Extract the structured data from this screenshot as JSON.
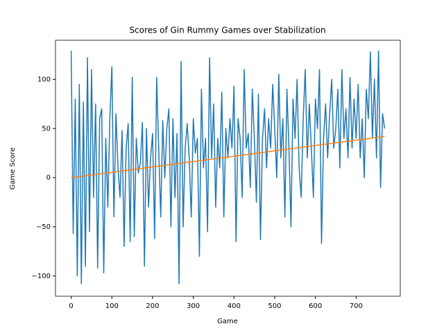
{
  "chart_data": {
    "type": "line",
    "title": "Scores of Gin Rummy Games over Stabilization",
    "x_label": "Game",
    "y_label": "Game Score",
    "xlim": [
      -38.5,
      808.5
    ],
    "ylim": [
      -120.6,
      139.8
    ],
    "xticks": [
      0,
      100,
      200,
      300,
      400,
      500,
      600,
      700
    ],
    "yticks": [
      {
        "value": -100,
        "label": "−100"
      },
      {
        "value": -50,
        "label": "−50"
      },
      0,
      50,
      100
    ],
    "series": [
      {
        "color": "#1f77b4",
        "x": [
          0,
          5,
          10,
          15,
          20,
          25,
          30,
          35,
          40,
          45,
          50,
          55,
          60,
          65,
          70,
          75,
          80,
          85,
          90,
          95,
          100,
          105,
          110,
          115,
          120,
          125,
          130,
          135,
          140,
          145,
          150,
          155,
          160,
          165,
          170,
          175,
          180,
          185,
          190,
          195,
          200,
          205,
          210,
          215,
          220,
          225,
          230,
          235,
          240,
          245,
          250,
          255,
          260,
          265,
          270,
          275,
          280,
          285,
          290,
          295,
          300,
          305,
          310,
          315,
          320,
          325,
          330,
          335,
          340,
          345,
          350,
          355,
          360,
          365,
          370,
          375,
          380,
          385,
          390,
          395,
          400,
          405,
          410,
          415,
          420,
          425,
          430,
          435,
          440,
          445,
          450,
          455,
          460,
          465,
          470,
          475,
          480,
          485,
          490,
          495,
          500,
          505,
          510,
          515,
          520,
          525,
          530,
          535,
          540,
          545,
          550,
          555,
          560,
          565,
          570,
          575,
          580,
          585,
          590,
          595,
          600,
          605,
          610,
          615,
          620,
          625,
          630,
          635,
          640,
          645,
          650,
          655,
          660,
          665,
          670,
          675,
          680,
          685,
          690,
          695,
          700,
          705,
          710,
          715,
          720,
          725,
          730,
          735,
          740,
          745,
          750,
          755,
          760,
          765,
          770
        ],
        "values": [
          129,
          -57,
          80,
          -100,
          95,
          -108,
          77,
          -90,
          122,
          -55,
          110,
          -20,
          75,
          -92,
          60,
          70,
          -97,
          40,
          -30,
          60,
          113,
          -40,
          65,
          10,
          -20,
          48,
          -70,
          30,
          55,
          -65,
          102,
          -60,
          40,
          5,
          15,
          56,
          -90,
          50,
          -30,
          20,
          45,
          -62,
          102,
          30,
          -40,
          58,
          0,
          50,
          70,
          -50,
          60,
          -20,
          45,
          -108,
          118,
          -50,
          30,
          55,
          20,
          -40,
          60,
          25,
          40,
          -80,
          90,
          10,
          40,
          -55,
          122,
          20,
          75,
          -30,
          40,
          10,
          87,
          -40,
          50,
          20,
          60,
          30,
          93,
          -65,
          60,
          40,
          -20,
          110,
          30,
          45,
          -10,
          90,
          40,
          -25,
          85,
          -63,
          40,
          70,
          10,
          60,
          30,
          95,
          50,
          0,
          105,
          20,
          60,
          -40,
          90,
          30,
          -50,
          80,
          40,
          100,
          10,
          -20,
          60,
          110,
          20,
          75,
          30,
          -20,
          80,
          50,
          110,
          -67,
          40,
          75,
          20,
          65,
          100,
          30,
          50,
          90,
          10,
          110,
          40,
          70,
          20,
          102,
          30,
          80,
          40,
          95,
          20,
          60,
          0,
          90,
          60,
          128,
          40,
          100,
          20,
          129,
          -10,
          65,
          50
        ]
      },
      {
        "color": "#ff7f0e",
        "x": [
          0,
          770
        ],
        "values": [
          0,
          42
        ]
      }
    ]
  }
}
